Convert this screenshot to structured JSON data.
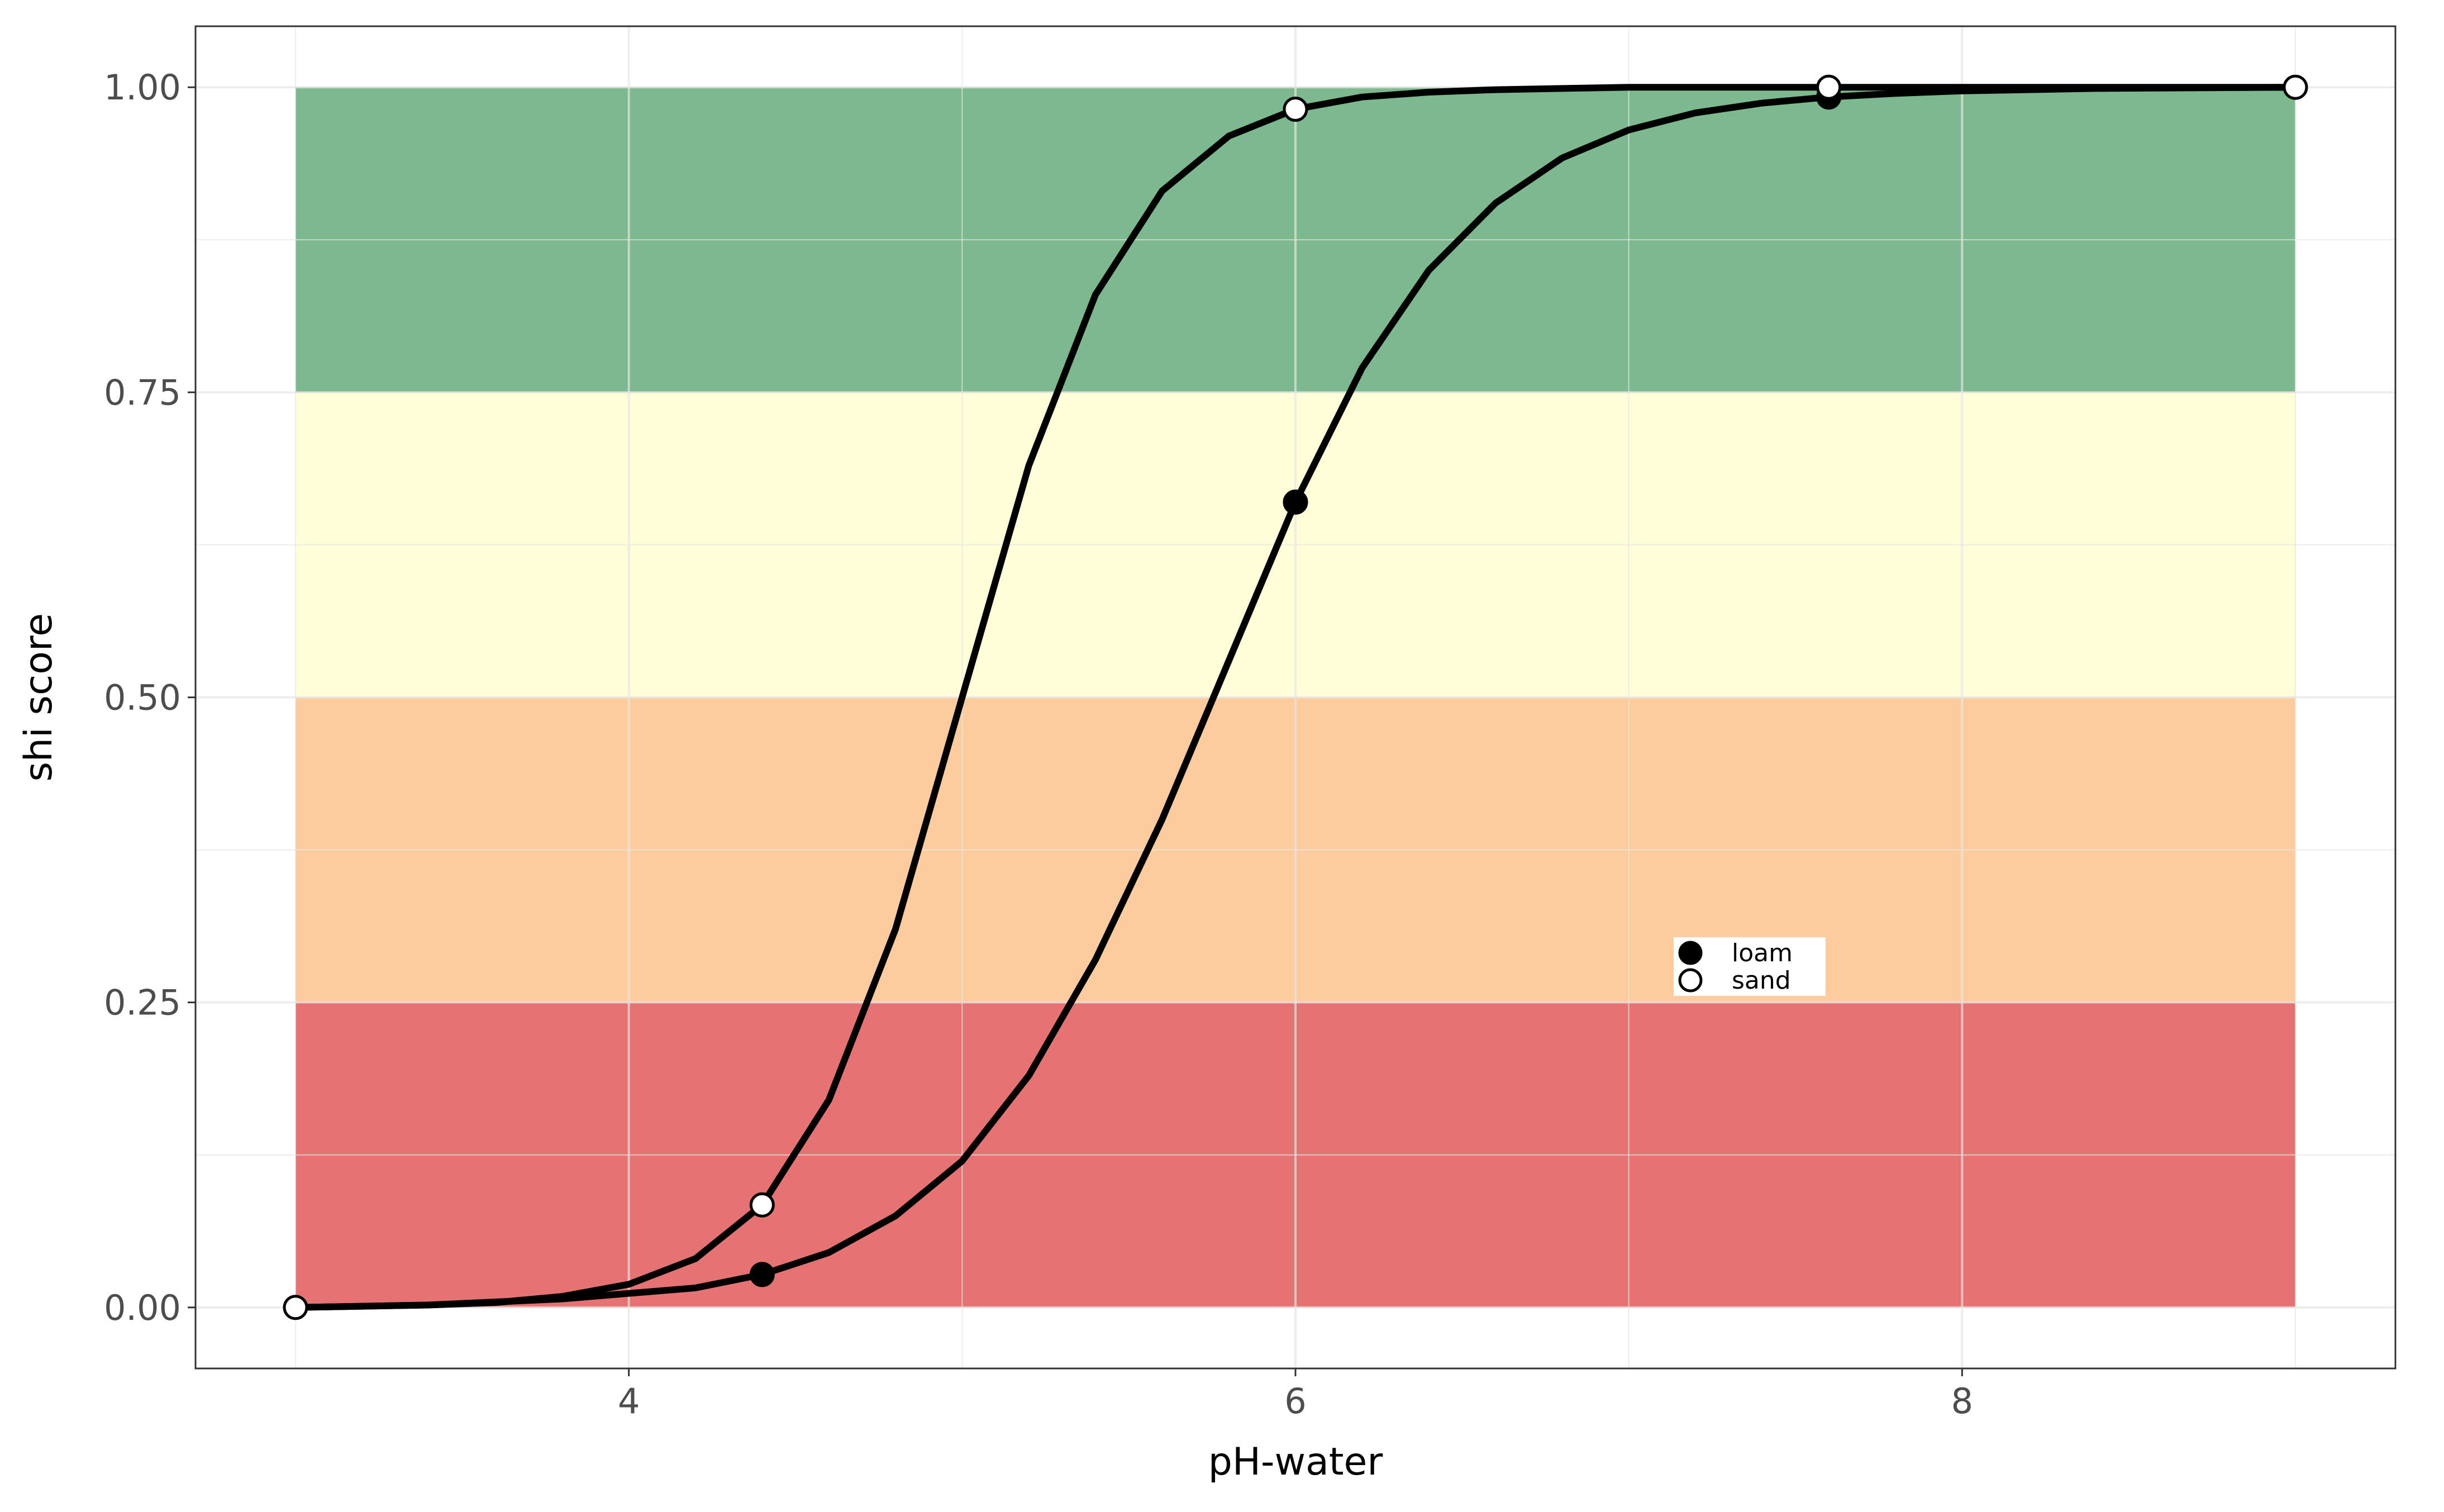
{
  "chart_data": {
    "type": "line",
    "xlabel": "pH-water",
    "ylabel": "shi score",
    "xlim": [
      2.7,
      9.3
    ],
    "ylim": [
      -0.05,
      1.05
    ],
    "x_ticks": [
      4,
      6,
      8
    ],
    "x_tick_labels": [
      "4",
      "6",
      "8"
    ],
    "y_ticks": [
      0,
      0.25,
      0.5,
      0.75,
      1.0
    ],
    "y_tick_labels": [
      "0.00",
      "0.25",
      "0.50",
      "0.75",
      "1.00"
    ],
    "grid": true,
    "bands": [
      {
        "y0": 0.0,
        "y1": 0.25,
        "color": "#e57373"
      },
      {
        "y0": 0.25,
        "y1": 0.5,
        "color": "#fdcc9e"
      },
      {
        "y0": 0.5,
        "y1": 0.75,
        "color": "#feffd9"
      },
      {
        "y0": 0.75,
        "y1": 1.0,
        "color": "#7db98e"
      }
    ],
    "band_x_range": [
      3.0,
      9.0
    ],
    "legend": {
      "position": "inside-bottom-right",
      "entries": [
        {
          "label": "loam",
          "marker": "filled"
        },
        {
          "label": "sand",
          "marker": "open"
        }
      ]
    },
    "series": [
      {
        "name": "loam",
        "line_color": "#000000",
        "x": [
          3.0,
          3.4,
          3.8,
          4.2,
          4.4,
          4.6,
          4.8,
          5.0,
          5.2,
          5.4,
          5.6,
          5.8,
          6.0,
          6.2,
          6.4,
          6.6,
          6.8,
          7.0,
          7.2,
          7.4,
          7.6,
          7.8,
          8.0,
          8.4,
          9.0
        ],
        "y": [
          0.0,
          0.002,
          0.007,
          0.016,
          0.027,
          0.045,
          0.075,
          0.12,
          0.19,
          0.285,
          0.4,
          0.53,
          0.66,
          0.77,
          0.85,
          0.905,
          0.942,
          0.965,
          0.979,
          0.987,
          0.992,
          0.995,
          0.997,
          0.999,
          1.0
        ],
        "points": [
          {
            "x": 4.4,
            "y": 0.027
          },
          {
            "x": 6.0,
            "y": 0.66
          },
          {
            "x": 7.6,
            "y": 0.992
          }
        ],
        "marker": "filled"
      },
      {
        "name": "sand",
        "line_color": "#000000",
        "x": [
          3.0,
          3.4,
          3.6,
          3.8,
          4.0,
          4.2,
          4.4,
          4.6,
          4.8,
          5.0,
          5.2,
          5.4,
          5.6,
          5.8,
          6.0,
          6.2,
          6.4,
          6.6,
          6.8,
          7.0,
          7.6,
          8.0,
          9.0
        ],
        "y": [
          0.0,
          0.002,
          0.004,
          0.009,
          0.019,
          0.04,
          0.084,
          0.17,
          0.31,
          0.5,
          0.69,
          0.83,
          0.915,
          0.96,
          0.982,
          0.992,
          0.996,
          0.998,
          0.999,
          1.0,
          1.0,
          1.0,
          1.0
        ],
        "points": [
          {
            "x": 3.0,
            "y": 0.0
          },
          {
            "x": 4.4,
            "y": 0.084
          },
          {
            "x": 6.0,
            "y": 0.982
          },
          {
            "x": 7.6,
            "y": 1.0
          },
          {
            "x": 9.0,
            "y": 1.0
          }
        ],
        "marker": "open"
      }
    ]
  }
}
